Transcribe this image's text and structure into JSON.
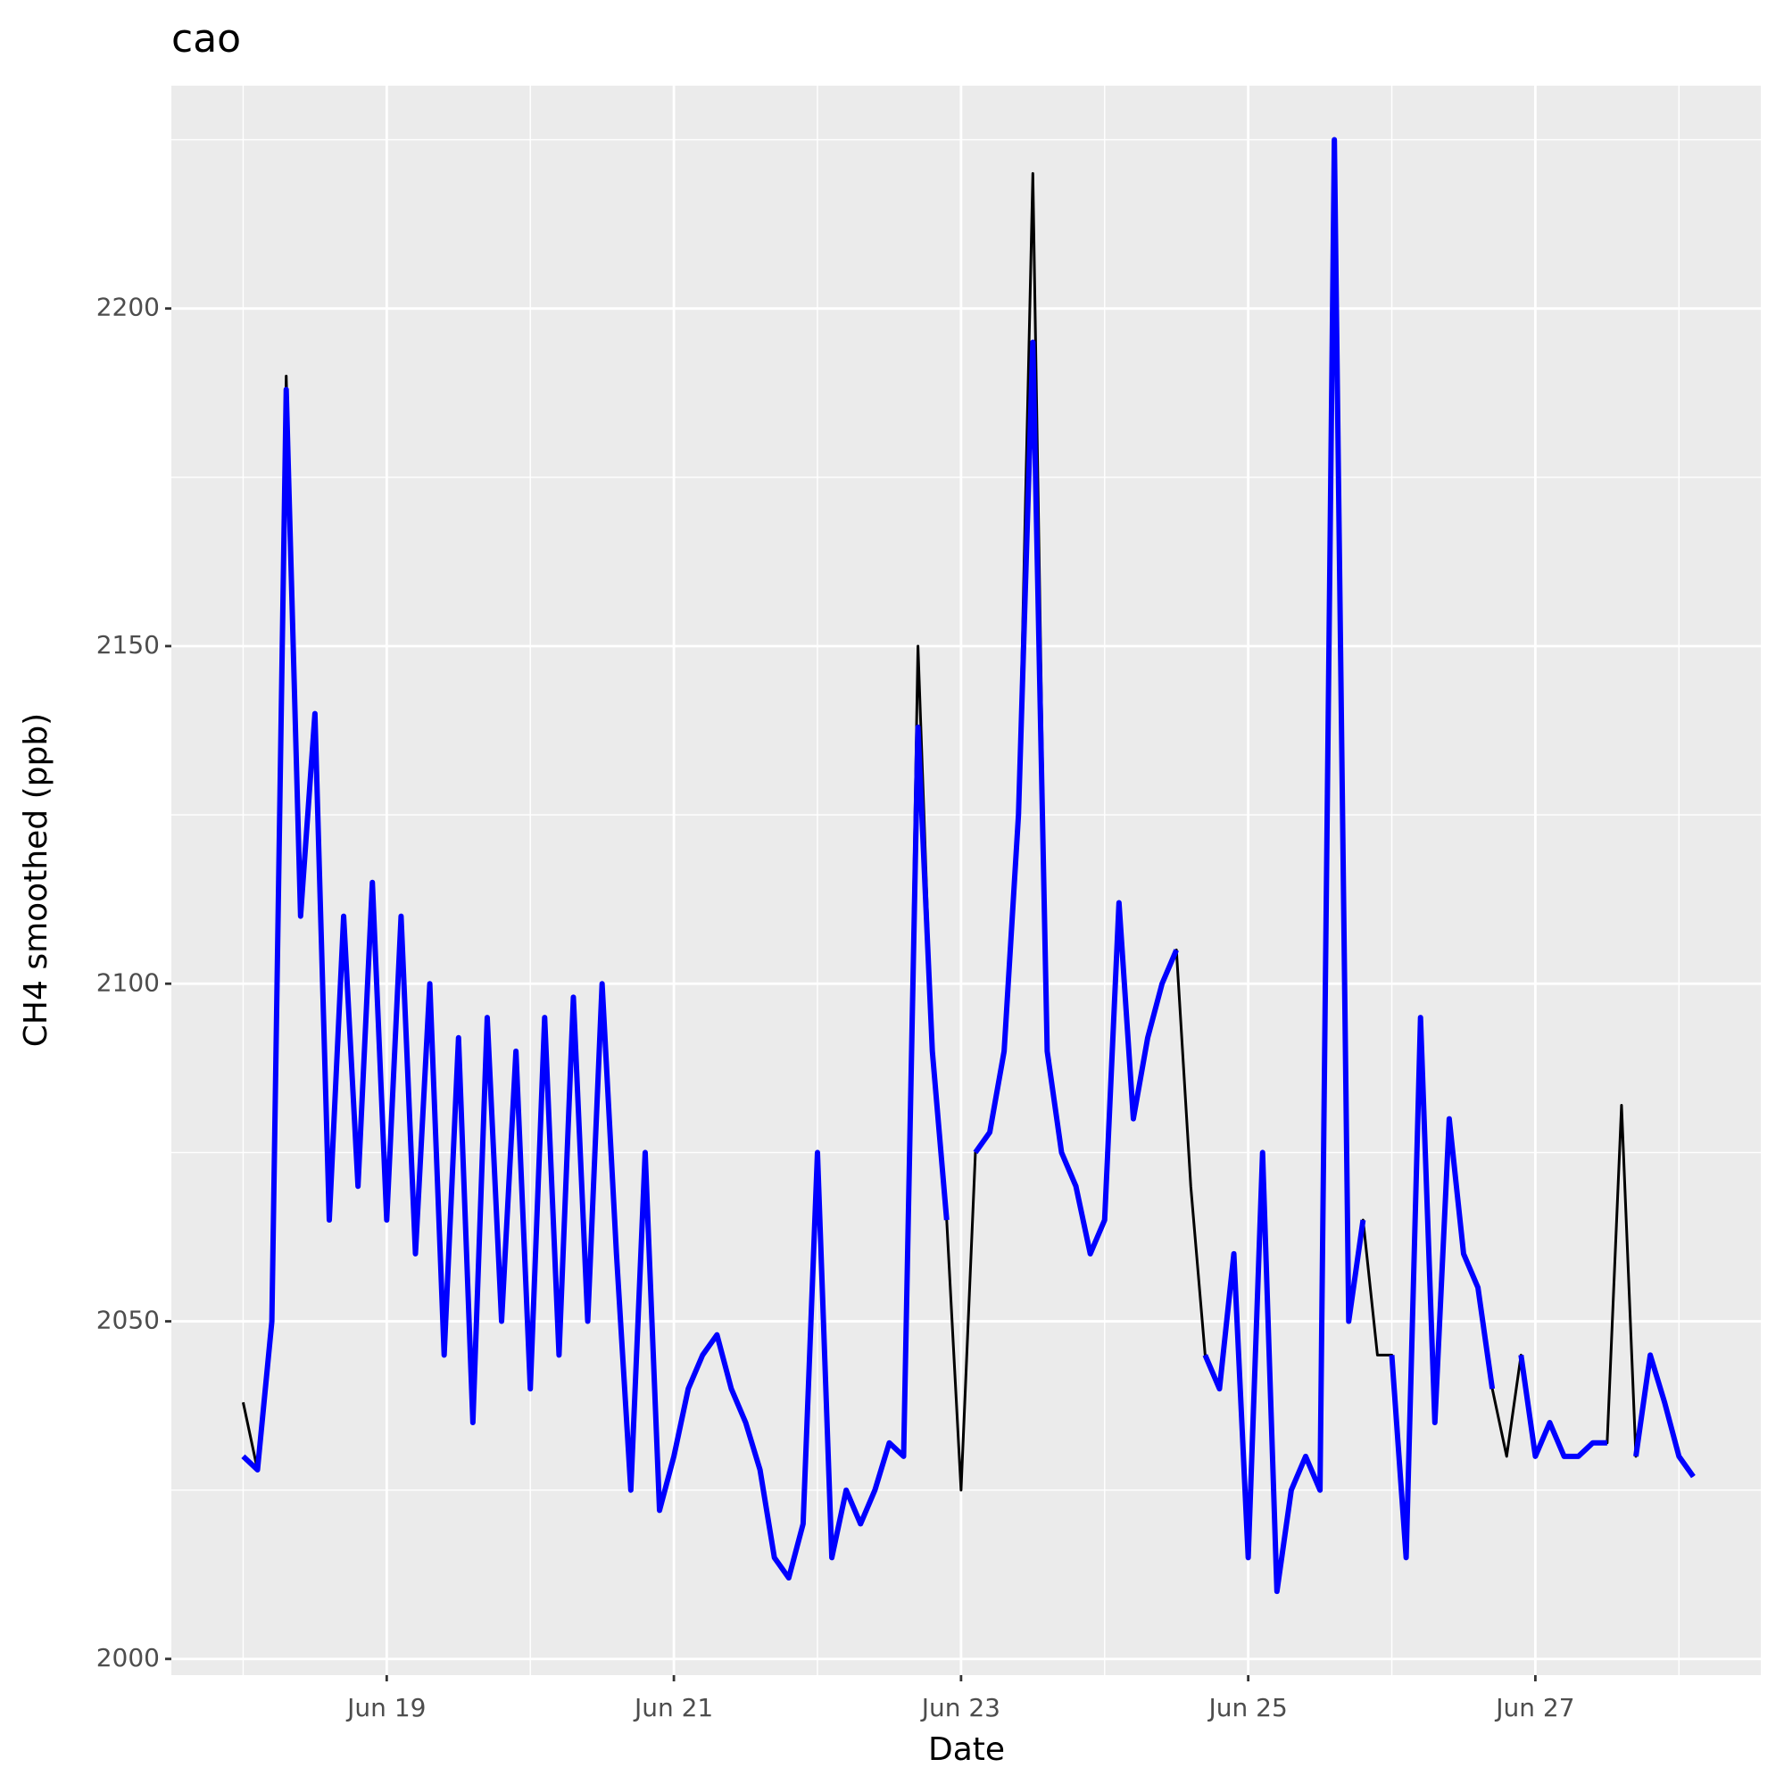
{
  "chart_data": {
    "type": "line",
    "title": "cao",
    "xlabel": "Date",
    "ylabel": "CH4 smoothed (ppb)",
    "x": [
      18.0,
      18.1,
      18.2,
      18.3,
      18.4,
      18.5,
      18.6,
      18.7,
      18.8,
      18.9,
      19.0,
      19.1,
      19.2,
      19.3,
      19.4,
      19.5,
      19.6,
      19.7,
      19.8,
      19.9,
      20.0,
      20.1,
      20.2,
      20.3,
      20.4,
      20.5,
      20.6,
      20.7,
      20.8,
      20.9,
      21.0,
      21.1,
      21.2,
      21.3,
      21.4,
      21.5,
      21.6,
      21.7,
      21.8,
      21.9,
      22.0,
      22.1,
      22.2,
      22.3,
      22.4,
      22.5,
      22.6,
      22.7,
      22.8,
      22.9,
      23.0,
      23.1,
      23.2,
      23.3,
      23.4,
      23.5,
      23.6,
      23.7,
      23.8,
      23.9,
      24.0,
      24.1,
      24.2,
      24.3,
      24.4,
      24.5,
      24.6,
      24.7,
      24.8,
      24.9,
      25.0,
      25.1,
      25.2,
      25.3,
      25.4,
      25.5,
      25.6,
      25.7,
      25.8,
      25.9,
      26.0,
      26.1,
      26.2,
      26.3,
      26.4,
      26.5,
      26.6,
      26.7,
      26.8,
      26.9,
      27.0,
      27.1,
      27.2,
      27.3,
      27.4,
      27.5,
      27.6,
      27.7,
      27.8,
      27.9,
      28.0,
      28.1
    ],
    "series": [
      {
        "color": "#000000",
        "values": [
          2038,
          2028,
          2050,
          2190,
          2110,
          2140,
          2065,
          2110,
          2070,
          2115,
          2065,
          2110,
          2060,
          2100,
          2045,
          2092,
          2035,
          2095,
          2050,
          2090,
          2040,
          2095,
          2045,
          2098,
          2050,
          2100,
          2060,
          2025,
          2075,
          2022,
          2030,
          2040,
          2045,
          2048,
          2040,
          2035,
          2028,
          2015,
          2012,
          2020,
          2075,
          2015,
          2025,
          2020,
          2025,
          2032,
          2030,
          2150,
          2090,
          2065,
          2025,
          2075,
          2078,
          2090,
          2125,
          2220,
          2090,
          2075,
          2070,
          2060,
          2065,
          2112,
          2080,
          2092,
          2100,
          2105,
          2070,
          2045,
          2040,
          2060,
          2015,
          2075,
          2010,
          2025,
          2030,
          2025,
          2225,
          2050,
          2065,
          2045,
          2045,
          2015,
          2095,
          2035,
          2080,
          2060,
          2055,
          2040,
          2030,
          2045,
          2030,
          2035,
          2030,
          2030,
          2032,
          2032,
          2082,
          2030,
          2045,
          2038,
          2030,
          2027
        ]
      },
      {
        "color": "#0000ff",
        "values": [
          2030,
          2028,
          2050,
          2188,
          2110,
          2140,
          2065,
          2110,
          2070,
          2115,
          2065,
          2110,
          2060,
          2100,
          2045,
          2092,
          2035,
          2095,
          2050,
          2090,
          2040,
          2095,
          2045,
          2098,
          2050,
          2100,
          2060,
          2025,
          2075,
          2022,
          2030,
          2040,
          2045,
          2048,
          2040,
          2035,
          2028,
          2015,
          2012,
          2020,
          2075,
          2015,
          2025,
          2020,
          2025,
          2032,
          2030,
          2138,
          2090,
          2065,
          null,
          2075,
          2078,
          2090,
          2125,
          2195,
          2090,
          2075,
          2070,
          2060,
          2065,
          2112,
          2080,
          2092,
          2100,
          2105,
          null,
          2045,
          2040,
          2060,
          2015,
          2075,
          2010,
          2025,
          2030,
          2025,
          2225,
          2050,
          2065,
          null,
          2045,
          2015,
          2095,
          2035,
          2080,
          2060,
          2055,
          2040,
          null,
          2045,
          2030,
          2035,
          2030,
          2030,
          2032,
          2032,
          null,
          2030,
          2045,
          2038,
          2030,
          2027
        ]
      }
    ],
    "xlim": [
      17.5,
      28.57
    ],
    "xticks": [
      {
        "value": 19,
        "label": "Jun 19"
      },
      {
        "value": 21,
        "label": "Jun 21"
      },
      {
        "value": 23,
        "label": "Jun 23"
      },
      {
        "value": 25,
        "label": "Jun 25"
      },
      {
        "value": 27,
        "label": "Jun 27"
      }
    ],
    "xminor_ticks": [
      18,
      20,
      22,
      24,
      26,
      28
    ],
    "ylim": [
      1997.6,
      2233
    ],
    "yticks": [
      2000,
      2050,
      2100,
      2150,
      2200
    ],
    "yminor_ticks": [
      2025,
      2075,
      2125,
      2175,
      2225
    ],
    "grid": true
  }
}
